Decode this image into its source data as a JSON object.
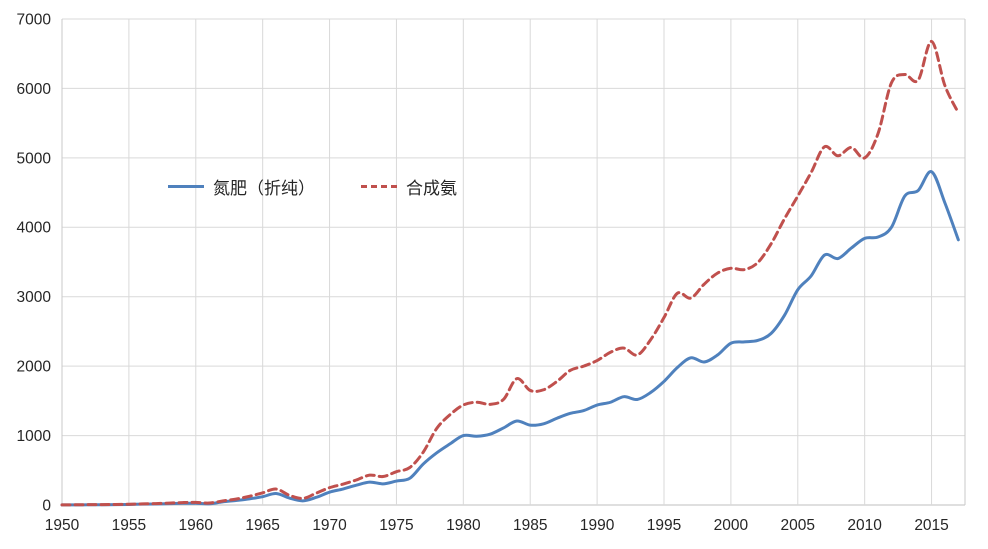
{
  "chart_data": {
    "type": "line",
    "title": "",
    "xlabel": "",
    "ylabel": "",
    "grid": true,
    "legend_position": "inside-upper-left",
    "xlim": [
      1950,
      2017.5
    ],
    "ylim": [
      0,
      7000
    ],
    "x_ticks": [
      1950,
      1955,
      1960,
      1965,
      1970,
      1975,
      1980,
      1985,
      1990,
      1995,
      2000,
      2005,
      2010,
      2015
    ],
    "y_ticks": [
      0,
      1000,
      2000,
      3000,
      4000,
      5000,
      6000,
      7000
    ],
    "x": [
      1950,
      1951,
      1952,
      1953,
      1954,
      1955,
      1956,
      1957,
      1958,
      1959,
      1960,
      1961,
      1962,
      1963,
      1964,
      1965,
      1966,
      1967,
      1968,
      1969,
      1970,
      1971,
      1972,
      1973,
      1974,
      1975,
      1976,
      1977,
      1978,
      1979,
      1980,
      1981,
      1982,
      1983,
      1984,
      1985,
      1986,
      1987,
      1988,
      1989,
      1990,
      1991,
      1992,
      1993,
      1994,
      1995,
      1996,
      1997,
      1998,
      1999,
      2000,
      2001,
      2002,
      2003,
      2004,
      2005,
      2006,
      2007,
      2008,
      2009,
      2010,
      2011,
      2012,
      2013,
      2014,
      2015,
      2016,
      2017
    ],
    "series": [
      {
        "name": "氮肥（折纯）",
        "color": "#4f81bd",
        "line_style": "solid",
        "values": [
          1,
          2,
          3,
          4,
          5,
          8,
          12,
          15,
          20,
          25,
          25,
          17,
          45,
          65,
          88,
          120,
          165,
          100,
          60,
          110,
          185,
          230,
          285,
          330,
          305,
          345,
          385,
          590,
          750,
          880,
          1000,
          990,
          1020,
          1110,
          1210,
          1150,
          1170,
          1250,
          1320,
          1360,
          1440,
          1480,
          1560,
          1520,
          1620,
          1780,
          1980,
          2120,
          2060,
          2160,
          2330,
          2350,
          2370,
          2470,
          2730,
          3100,
          3300,
          3600,
          3550,
          3700,
          3840,
          3860,
          4000,
          4450,
          4530,
          4800,
          4350,
          3820
        ]
      },
      {
        "name": "合成氨",
        "color": "#c0504d",
        "line_style": "dashed",
        "values": [
          2,
          3,
          5,
          6,
          8,
          11,
          16,
          20,
          27,
          35,
          38,
          28,
          58,
          85,
          125,
          175,
          230,
          140,
          95,
          170,
          250,
          300,
          360,
          430,
          410,
          480,
          540,
          760,
          1100,
          1300,
          1440,
          1480,
          1450,
          1520,
          1820,
          1650,
          1660,
          1780,
          1940,
          2000,
          2080,
          2200,
          2260,
          2160,
          2380,
          2700,
          3050,
          2980,
          3180,
          3340,
          3410,
          3390,
          3490,
          3760,
          4120,
          4450,
          4790,
          5160,
          5030,
          5150,
          5000,
          5350,
          6080,
          6200,
          6120,
          6677,
          6040,
          5650
        ]
      }
    ]
  },
  "style": {
    "gridline_color": "#d9d9d9",
    "border_color": "#c9c9c9",
    "axis_color": "#bfbfbf",
    "tick_label_color": "#262626",
    "tick_font_size": 15.5
  }
}
